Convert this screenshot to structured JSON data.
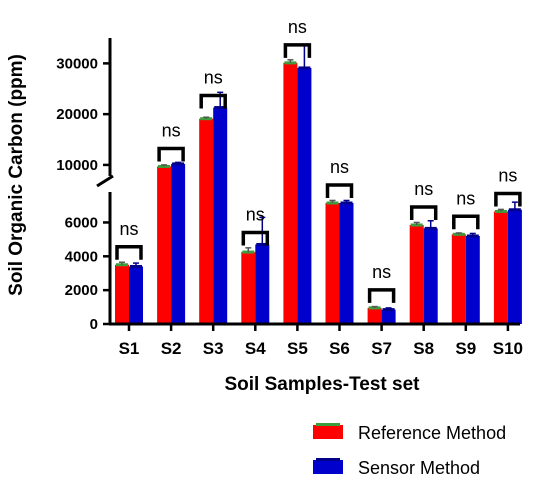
{
  "chart_data": {
    "type": "bar",
    "xlabel": "Soil Samples-Test set",
    "ylabel": "Soil Organic Carbon (ppm)",
    "categories": [
      "S1",
      "S2",
      "S3",
      "S4",
      "S5",
      "S6",
      "S7",
      "S8",
      "S9",
      "S10"
    ],
    "series": [
      {
        "name": "Reference Method",
        "color": "#ff0000",
        "values": [
          3500,
          9700,
          19100,
          4250,
          30100,
          7150,
          950,
          5850,
          5300,
          6650
        ],
        "errors": [
          150,
          300,
          300,
          250,
          600,
          150,
          80,
          150,
          80,
          120
        ]
      },
      {
        "name": "Sensor Method",
        "color": "#0000cc",
        "values": [
          3400,
          10200,
          21300,
          4700,
          29100,
          7150,
          850,
          5650,
          5200,
          6750
        ],
        "errors": [
          200,
          300,
          3000,
          1600,
          4600,
          150,
          100,
          450,
          150,
          450
        ]
      }
    ],
    "y_axis": {
      "broken": true,
      "lower_segment": [
        0,
        7800
      ],
      "upper_segment": [
        9000,
        35000
      ],
      "ticks": [
        0,
        2000,
        4000,
        6000,
        10000,
        20000,
        30000
      ],
      "tick_labels": [
        "0",
        "2000",
        "4000",
        "6000",
        "10000",
        "20000",
        "30000"
      ]
    },
    "annotations": [
      "ns",
      "ns",
      "ns",
      "ns",
      "ns",
      "ns",
      "ns",
      "ns",
      "ns",
      "ns"
    ],
    "legend": {
      "position": "bottom-right",
      "entries": [
        "Reference Method",
        "Sensor Method"
      ]
    }
  }
}
